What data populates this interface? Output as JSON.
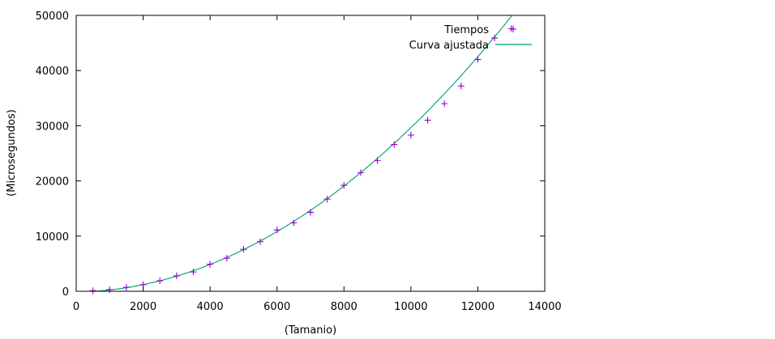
{
  "chart_data": {
    "type": "scatter",
    "title": "",
    "xlabel": "(Tamanio)",
    "ylabel": "(Microsegundos)",
    "xlim": [
      0,
      14000
    ],
    "ylim": [
      0,
      50000
    ],
    "x_ticks": [
      0,
      2000,
      4000,
      6000,
      8000,
      10000,
      12000,
      14000
    ],
    "y_ticks": [
      0,
      10000,
      20000,
      30000,
      40000,
      50000
    ],
    "grid": false,
    "legend_position": "top-right",
    "series": [
      {
        "name": "Tiempos",
        "kind": "points",
        "marker": "plus",
        "color": "#9400d3",
        "x": [
          500,
          1000,
          1500,
          2000,
          2500,
          3000,
          3500,
          4000,
          4500,
          5000,
          5500,
          6000,
          6500,
          7000,
          7500,
          8000,
          8500,
          9000,
          9500,
          10000,
          10500,
          11000,
          11500,
          12000,
          12500,
          13000
        ],
        "y": [
          100,
          300,
          700,
          1200,
          1900,
          2800,
          3500,
          4900,
          6000,
          7600,
          9000,
          11100,
          12400,
          14300,
          16700,
          19200,
          21500,
          23700,
          26600,
          28300,
          31000,
          34000,
          37200,
          42000,
          45900,
          47600
        ]
      },
      {
        "name": "Curva ajustada",
        "kind": "line",
        "color": "#009e73",
        "formula": "y = 0.000288*x^2 + 0.1*x - 150",
        "x_range": [
          500,
          13300
        ]
      }
    ]
  }
}
